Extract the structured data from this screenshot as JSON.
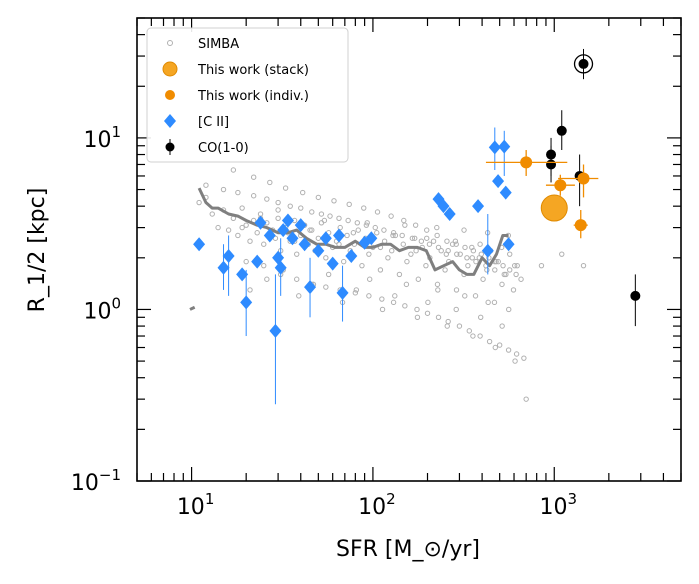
{
  "chart_data": {
    "type": "scatter",
    "xlabel": "SFR [M_⊙/yr]",
    "ylabel": "R_1/2 [kpc]",
    "xscale": "log",
    "yscale": "log",
    "xlim": [
      5,
      5000
    ],
    "ylim": [
      0.1,
      50
    ],
    "grid": false,
    "legend_position": "top-left",
    "xticks": [
      {
        "value": 10,
        "exp": "1"
      },
      {
        "value": 100,
        "exp": "2"
      },
      {
        "value": 1000,
        "exp": "3"
      }
    ],
    "yticks": [
      {
        "value": 0.1,
        "exp": "−1"
      },
      {
        "value": 1,
        "exp": "0"
      },
      {
        "value": 10,
        "exp": "1"
      }
    ],
    "tick_base": "10",
    "legend": [
      {
        "label": "SIMBA",
        "marker": "hollow-circle",
        "color": "#b0b0b0"
      },
      {
        "label": "This work (stack)",
        "marker": "big-circle",
        "color": "#f5a623"
      },
      {
        "label": "This work (indiv.)",
        "marker": "circle",
        "color": "#f08c00"
      },
      {
        "label": "[C II]",
        "marker": "diamond",
        "color": "#2e8bff"
      },
      {
        "label": "CO(1-0)",
        "marker": "circle",
        "color": "#000000"
      }
    ],
    "series": [
      {
        "name": "SIMBA",
        "color": "#b0b0b0",
        "x": [
          11,
          12,
          13,
          14,
          15,
          16,
          17,
          18,
          19,
          20,
          21,
          22,
          23,
          24,
          25,
          26,
          28,
          29,
          30,
          31,
          33,
          34,
          35,
          37,
          38,
          40,
          42,
          44,
          46,
          48,
          50,
          52,
          55,
          57,
          60,
          63,
          66,
          69,
          72,
          75,
          79,
          83,
          87,
          91,
          95,
          100,
          105,
          110,
          116,
          121,
          127,
          133,
          140,
          147,
          154,
          162,
          170,
          178,
          187,
          196,
          206,
          216,
          227,
          238,
          250,
          262,
          275,
          289,
          303,
          318,
          334,
          351,
          368,
          386,
          405,
          425,
          446,
          468,
          491,
          515,
          541,
          568,
          596,
          625,
          656,
          12,
          15,
          18,
          22,
          26,
          30,
          35,
          40,
          46,
          52,
          58,
          65,
          73,
          82,
          92,
          103,
          115,
          130,
          145,
          165,
          185,
          205,
          230,
          260,
          290,
          330,
          370,
          420,
          470,
          530,
          16,
          20,
          25,
          31,
          38,
          46,
          55,
          66,
          80,
          95,
          112,
          130,
          150,
          175,
          200,
          230,
          260,
          300,
          340,
          390,
          440,
          500,
          560,
          620,
          680,
          17,
          22,
          27,
          33,
          41,
          50,
          61,
          74,
          89,
          106,
          126,
          148,
          172,
          198,
          226,
          256,
          288,
          322,
          358,
          396,
          436,
          478,
          522,
          568,
          616,
          19,
          24,
          30,
          37,
          45,
          54,
          65,
          78,
          93,
          110,
          129,
          150,
          173,
          198,
          225,
          254,
          285,
          318,
          353,
          390,
          429,
          470,
          513,
          558,
          605,
          21,
          26,
          32,
          39,
          47,
          57,
          68,
          81,
          96,
          113,
          132,
          153,
          176,
          201,
          228,
          257,
          288,
          321,
          356,
          393,
          432,
          473,
          516,
          561,
          608,
          700,
          850,
          1100,
          1450
        ],
        "y": [
          4.2,
          4.5,
          3.6,
          3.0,
          3.8,
          2.9,
          3.4,
          2.7,
          3.9,
          3.1,
          2.5,
          3.3,
          2.8,
          3.6,
          2.4,
          3.2,
          2.9,
          2.6,
          3.4,
          2.2,
          3.0,
          2.8,
          2.5,
          3.3,
          2.1,
          2.7,
          3.1,
          2.4,
          2.9,
          2.2,
          2.6,
          3.2,
          2.0,
          2.8,
          2.3,
          2.5,
          3.0,
          1.9,
          2.7,
          2.2,
          2.4,
          2.9,
          1.8,
          2.6,
          2.1,
          2.3,
          2.8,
          1.7,
          2.5,
          2.0,
          2.2,
          2.7,
          1.6,
          2.4,
          1.9,
          2.1,
          2.6,
          1.5,
          2.3,
          1.8,
          2.0,
          2.5,
          1.4,
          2.2,
          1.7,
          1.9,
          2.4,
          1.3,
          2.1,
          1.6,
          1.8,
          2.3,
          1.2,
          2.0,
          1.5,
          1.7,
          2.2,
          1.1,
          1.9,
          1.4,
          1.6,
          2.1,
          1.3,
          1.8,
          1.5,
          5.3,
          5.0,
          4.8,
          4.6,
          4.4,
          4.2,
          4.0,
          3.9,
          3.7,
          3.6,
          3.5,
          3.4,
          3.3,
          3.2,
          3.1,
          3.0,
          2.9,
          2.8,
          2.7,
          2.6,
          2.5,
          2.4,
          2.3,
          2.2,
          2.1,
          2.0,
          1.9,
          1.8,
          1.7,
          1.6,
          2.1,
          1.9,
          1.8,
          1.6,
          1.5,
          1.4,
          1.35,
          1.3,
          1.25,
          1.2,
          1.15,
          1.1,
          1.05,
          1.0,
          0.95,
          0.9,
          0.85,
          0.8,
          0.75,
          0.7,
          0.65,
          0.62,
          0.58,
          0.55,
          0.52,
          6.5,
          5.9,
          5.5,
          5.1,
          4.8,
          4.5,
          4.3,
          4.1,
          3.9,
          3.7,
          3.5,
          3.3,
          3.1,
          2.9,
          2.7,
          2.5,
          2.4,
          2.3,
          2.2,
          2.1,
          2.0,
          1.9,
          1.8,
          1.7,
          1.6,
          3.0,
          3.4,
          3.8,
          2.5,
          2.9,
          3.3,
          2.4,
          2.8,
          3.2,
          2.3,
          2.7,
          3.1,
          2.2,
          2.6,
          3.0,
          2.1,
          2.5,
          2.9,
          2.0,
          2.4,
          2.8,
          1.9,
          2.3,
          2.7,
          1.8,
          1.3,
          1.5,
          1.7,
          1.2,
          1.4,
          1.6,
          1.1,
          1.3,
          1.5,
          1.0,
          1.2,
          1.4,
          0.9,
          1.1,
          1.3,
          0.8,
          1.0,
          1.2,
          0.7,
          0.9,
          1.1,
          0.6,
          0.8,
          1.0,
          0.5,
          0.3,
          1.8,
          2.1,
          1.8
        ]
      },
      {
        "name": "SIMBA median",
        "color": "#7f7f7f",
        "x": [
          11,
          12,
          13,
          14,
          16,
          18,
          20,
          23,
          26,
          30,
          34,
          38,
          43,
          49,
          55,
          62,
          70,
          80,
          90,
          100,
          112,
          125,
          140,
          157,
          176,
          197,
          220,
          246,
          275,
          300,
          330,
          360,
          400,
          440,
          480,
          520,
          560
        ],
        "y": [
          5.1,
          4.2,
          3.9,
          3.9,
          3.6,
          3.5,
          3.3,
          3.1,
          3.0,
          2.8,
          2.8,
          2.9,
          2.6,
          2.4,
          2.4,
          2.3,
          2.3,
          2.5,
          2.3,
          2.3,
          2.4,
          2.4,
          2.2,
          2.3,
          2.3,
          2.2,
          1.7,
          1.8,
          1.9,
          1.7,
          1.6,
          1.6,
          2.0,
          1.8,
          2.1,
          2.7,
          2.7
        ]
      },
      {
        "name": "This work (stack)",
        "color": "#f5a623",
        "x": [
          1000
        ],
        "y": [
          3.9
        ]
      },
      {
        "name": "This work (indiv.)",
        "color": "#f08c00",
        "points": [
          {
            "x": 700,
            "y": 7.2,
            "xerr": [
              420,
              1180
            ],
            "yerr": [
              6.0,
              8.5
            ]
          },
          {
            "x": 1080,
            "y": 5.3,
            "xerr": [
              900,
              1300
            ],
            "yerr": [
              4.6,
              6.1
            ]
          },
          {
            "x": 1450,
            "y": 5.8,
            "xerr": [
              1050,
              1750
            ],
            "yerr": [
              4.5,
              7.0
            ]
          },
          {
            "x": 1400,
            "y": 3.1,
            "xerr": [
              1280,
              1530
            ],
            "yerr": [
              2.6,
              3.8
            ]
          }
        ]
      },
      {
        "name": "[C II]",
        "color": "#2e8bff",
        "points": [
          {
            "x": 11,
            "y": 2.4
          },
          {
            "x": 15,
            "y": 1.75,
            "yerr": [
              1.3,
              2.4
            ]
          },
          {
            "x": 16,
            "y": 2.05,
            "yerr": [
              1.2,
              2.7
            ]
          },
          {
            "x": 19,
            "y": 1.6
          },
          {
            "x": 20,
            "y": 1.1,
            "yerr": [
              0.7,
              1.7
            ]
          },
          {
            "x": 23,
            "y": 1.9
          },
          {
            "x": 24,
            "y": 3.2
          },
          {
            "x": 27,
            "y": 2.7
          },
          {
            "x": 29,
            "y": 0.75,
            "yerr": [
              0.28,
              1.6
            ]
          },
          {
            "x": 30,
            "y": 2.0
          },
          {
            "x": 31,
            "y": 1.75,
            "yerr": [
              1.2,
              2.6
            ]
          },
          {
            "x": 32,
            "y": 2.9
          },
          {
            "x": 34,
            "y": 3.3
          },
          {
            "x": 36,
            "y": 2.6
          },
          {
            "x": 40,
            "y": 3.1
          },
          {
            "x": 42,
            "y": 2.4
          },
          {
            "x": 45,
            "y": 1.35,
            "yerr": [
              0.9,
              2.0
            ]
          },
          {
            "x": 50,
            "y": 2.2
          },
          {
            "x": 55,
            "y": 2.6
          },
          {
            "x": 60,
            "y": 1.85
          },
          {
            "x": 65,
            "y": 2.7
          },
          {
            "x": 68,
            "y": 1.25,
            "yerr": [
              0.85,
              1.8
            ]
          },
          {
            "x": 76,
            "y": 2.05
          },
          {
            "x": 90,
            "y": 2.45
          },
          {
            "x": 98,
            "y": 2.6
          },
          {
            "x": 230,
            "y": 4.4
          },
          {
            "x": 245,
            "y": 4.0
          },
          {
            "x": 265,
            "y": 3.6
          },
          {
            "x": 380,
            "y": 4.0
          },
          {
            "x": 430,
            "y": 2.2,
            "yerr": [
              1.6,
              3.6
            ]
          },
          {
            "x": 470,
            "y": 8.8,
            "yerr": [
              6.5,
              11.5
            ]
          },
          {
            "x": 490,
            "y": 5.6
          },
          {
            "x": 530,
            "y": 8.9,
            "yerr": [
              6.0,
              11.0
            ]
          },
          {
            "x": 540,
            "y": 4.8
          },
          {
            "x": 560,
            "y": 2.4
          }
        ]
      },
      {
        "name": "CO(1-0)",
        "color": "#000000",
        "points": [
          {
            "x": 1100,
            "y": 11.0,
            "yerr": [
              8.5,
              14.5
            ]
          },
          {
            "x": 960,
            "y": 8.0,
            "yerr": [
              6.0,
              10.0
            ]
          },
          {
            "x": 960,
            "y": 7.0,
            "yerr": [
              5.5,
              9.0
            ]
          },
          {
            "x": 1380,
            "y": 6.0,
            "yerr": [
              4.0,
              8.0
            ]
          },
          {
            "x": 1450,
            "y": 27,
            "yerr": [
              22,
              33
            ],
            "ring": true
          },
          {
            "x": 2800,
            "y": 1.2,
            "yerr": [
              0.8,
              1.6
            ]
          }
        ]
      }
    ]
  }
}
